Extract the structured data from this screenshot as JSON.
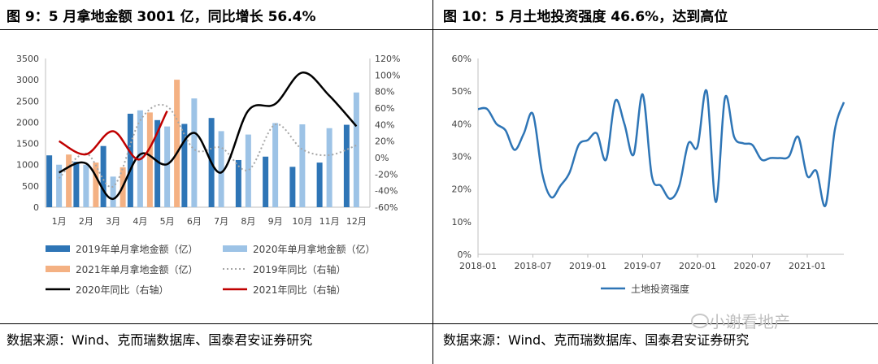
{
  "left_panel": {
    "title": "图 9：5 月拿地金额 3001 亿，同比增长 56.4%",
    "source": "数据来源：Wind、克而瑞数据库、国泰君安证券研究"
  },
  "right_panel": {
    "title": "图 10：5 月土地投资强度 46.6%，达到高位",
    "source": "数据来源：Wind、克而瑞数据库、国泰君安证券研究"
  },
  "watermark": "小谢看地产",
  "chart_data": [
    {
      "type": "bar",
      "categories": [
        "1月",
        "2月",
        "3月",
        "4月",
        "5月",
        "6月",
        "7月",
        "8月",
        "9月",
        "10月",
        "11月",
        "12月"
      ],
      "ylim": [
        0,
        3500
      ],
      "yticks": [
        "0",
        "500",
        "1000",
        "1500",
        "2000",
        "2500",
        "3000",
        "3500"
      ],
      "y2lim": [
        -60,
        120
      ],
      "y2ticks": [
        "-60%",
        "-40%",
        "-20%",
        "0%",
        "20%",
        "40%",
        "60%",
        "80%",
        "100%",
        "120%"
      ],
      "series": [
        {
          "name": "2019年单月拿地金额（亿）",
          "kind": "bar",
          "axis": "left",
          "color": "#2e75b6",
          "values": [
            1220,
            1070,
            1440,
            2200,
            2050,
            1960,
            2100,
            1110,
            1190,
            950,
            1050,
            1940
          ]
        },
        {
          "name": "2020年单月拿地金额（亿）",
          "kind": "bar",
          "axis": "left",
          "color": "#9dc3e6",
          "values": [
            1000,
            1000,
            720,
            2280,
            1900,
            2560,
            1790,
            1710,
            1980,
            1950,
            1860,
            2700
          ]
        },
        {
          "name": "2021年单月拿地金额（亿）",
          "kind": "bar",
          "axis": "left",
          "color": "#f4b183",
          "values": [
            1240,
            1050,
            940,
            2230,
            3001,
            null,
            null,
            null,
            null,
            null,
            null,
            null
          ]
        },
        {
          "name": "2019年同比（右轴）",
          "kind": "line",
          "axis": "right",
          "color": "#a6a6a6",
          "dash": true,
          "values": [
            -25,
            5,
            -35,
            45,
            62,
            10,
            12,
            -15,
            40,
            10,
            3,
            15
          ]
        },
        {
          "name": "2020年同比（右轴）",
          "kind": "line",
          "axis": "right",
          "color": "#000000",
          "values": [
            -18,
            -7,
            -50,
            4,
            -8,
            30,
            -18,
            57,
            65,
            103,
            75,
            38
          ]
        },
        {
          "name": "2021年同比（右轴）",
          "kind": "line",
          "axis": "right",
          "color": "#c00000",
          "values": [
            20,
            4,
            32,
            -2,
            56.4,
            null,
            null,
            null,
            null,
            null,
            null,
            null
          ]
        }
      ]
    },
    {
      "type": "line",
      "x": [
        "2018-01",
        "2018-02",
        "2018-03",
        "2018-04",
        "2018-05",
        "2018-06",
        "2018-07",
        "2018-08",
        "2018-09",
        "2018-10",
        "2018-11",
        "2018-12",
        "2019-01",
        "2019-02",
        "2019-03",
        "2019-04",
        "2019-05",
        "2019-06",
        "2019-07",
        "2019-08",
        "2019-09",
        "2019-10",
        "2019-11",
        "2019-12",
        "2020-01",
        "2020-02",
        "2020-03",
        "2020-04",
        "2020-05",
        "2020-06",
        "2020-07",
        "2020-08",
        "2020-09",
        "2020-10",
        "2020-11",
        "2020-12",
        "2021-01",
        "2021-02",
        "2021-03",
        "2021-04",
        "2021-05"
      ],
      "xticks": [
        "2018-01",
        "2018-07",
        "2019-01",
        "2019-07",
        "2020-01",
        "2020-07",
        "2021-01"
      ],
      "ylim": [
        0,
        60
      ],
      "yticks": [
        "0%",
        "10%",
        "20%",
        "30%",
        "40%",
        "50%",
        "60%"
      ],
      "series": [
        {
          "name": "土地投资强度",
          "color": "#2e75b6",
          "values": [
            44.5,
            44.5,
            40,
            38,
            32,
            37,
            43,
            25,
            17.5,
            21,
            25,
            33.5,
            35,
            37,
            29,
            47,
            40,
            30.5,
            49,
            24,
            21,
            17,
            21,
            34,
            33,
            50,
            16,
            48,
            36,
            34,
            33.5,
            29,
            29.5,
            29.5,
            30,
            36,
            24,
            25.5,
            15,
            38,
            46.6
          ]
        }
      ]
    }
  ]
}
